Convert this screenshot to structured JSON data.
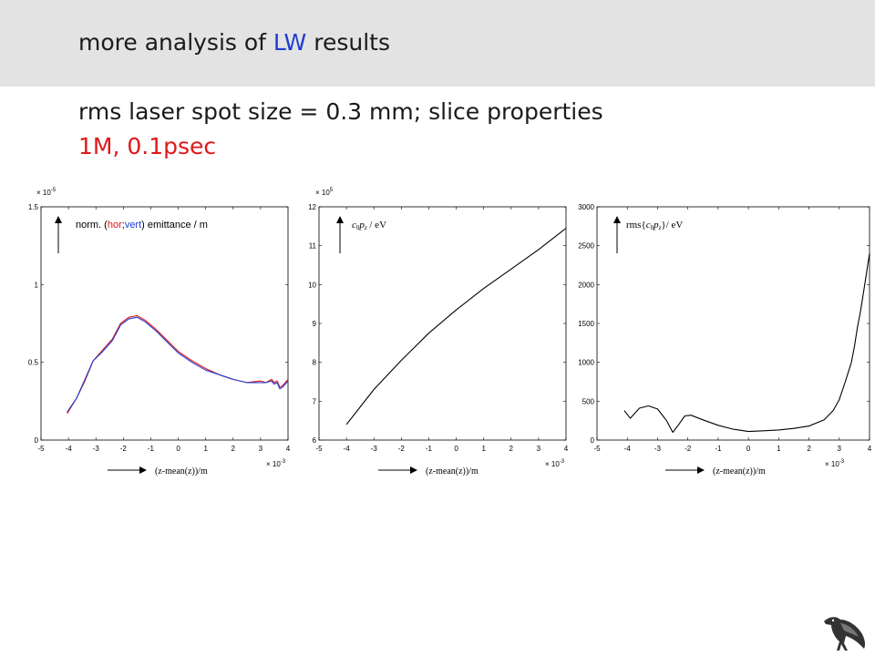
{
  "slide": {
    "title_prefix": "more analysis of ",
    "title_highlight": "LW",
    "title_suffix": " results",
    "subtitle": "rms laser spot size = 0.3 mm; slice properties",
    "subtitle2": "1M, 0.1psec"
  },
  "colors": {
    "header_band": "#e3e3e3",
    "highlight": "#1f3bd6",
    "accent_red": "#e01818",
    "hor": "#e01818",
    "vert": "#1f3bd6"
  },
  "chart_data": [
    {
      "type": "line",
      "ylabel_prefix": "norm. (",
      "ylabel_hor": "hor",
      "ylabel_sep": ";",
      "ylabel_vert": "vert",
      "ylabel_suffix": ") emittance / m",
      "xlabel": "(z-mean(z))/m",
      "x_exponent_label": "× 10",
      "x_exponent": "-3",
      "y_exponent_label": "× 10",
      "y_exponent": "-5",
      "xlim": [
        -5,
        4
      ],
      "ylim": [
        0,
        1.5
      ],
      "xticks": [
        "-5",
        "-4",
        "-3",
        "-2",
        "-1",
        "0",
        "1",
        "2",
        "3",
        "4"
      ],
      "yticks": [
        "0",
        "0.5",
        "1",
        "1.5"
      ],
      "series": [
        {
          "name": "hor",
          "color": "#e01818",
          "x": [
            -4.05,
            -3.7,
            -3.4,
            -3.1,
            -2.8,
            -2.4,
            -2.1,
            -1.8,
            -1.5,
            -1.2,
            -0.8,
            -0.4,
            0.0,
            0.5,
            1.0,
            1.5,
            2.0,
            2.5,
            3.0,
            3.2,
            3.4,
            3.5,
            3.6,
            3.7,
            3.8,
            3.9,
            4.0
          ],
          "values": [
            0.17,
            0.27,
            0.38,
            0.51,
            0.57,
            0.65,
            0.75,
            0.79,
            0.8,
            0.77,
            0.71,
            0.64,
            0.57,
            0.51,
            0.46,
            0.42,
            0.39,
            0.37,
            0.38,
            0.37,
            0.39,
            0.37,
            0.38,
            0.34,
            0.35,
            0.37,
            0.39
          ]
        },
        {
          "name": "vert",
          "color": "#1f3bd6",
          "x": [
            -4.05,
            -3.7,
            -3.4,
            -3.1,
            -2.8,
            -2.4,
            -2.1,
            -1.8,
            -1.5,
            -1.2,
            -0.8,
            -0.4,
            0.0,
            0.5,
            1.0,
            1.5,
            2.0,
            2.5,
            3.0,
            3.2,
            3.4,
            3.5,
            3.6,
            3.7,
            3.8,
            3.9,
            4.0
          ],
          "values": [
            0.18,
            0.27,
            0.39,
            0.51,
            0.56,
            0.64,
            0.74,
            0.78,
            0.79,
            0.76,
            0.7,
            0.63,
            0.56,
            0.5,
            0.45,
            0.42,
            0.39,
            0.37,
            0.37,
            0.37,
            0.38,
            0.36,
            0.37,
            0.33,
            0.34,
            0.36,
            0.38
          ]
        }
      ]
    },
    {
      "type": "line",
      "ylabel_c": "c",
      "ylabel_0": "0",
      "ylabel_p": "p",
      "ylabel_z": "z",
      "ylabel_unit": " / eV",
      "xlabel": "(z-mean(z))/m",
      "x_exponent_label": "× 10",
      "x_exponent": "-3",
      "y_exponent_label": "× 10",
      "y_exponent": "5",
      "xlim": [
        -5,
        4
      ],
      "ylim": [
        6,
        12
      ],
      "xticks": [
        "-5",
        "-4",
        "-3",
        "-2",
        "-1",
        "0",
        "1",
        "2",
        "3",
        "4"
      ],
      "yticks": [
        "6",
        "7",
        "8",
        "9",
        "10",
        "11",
        "12"
      ],
      "series": [
        {
          "color": "#000000",
          "x": [
            -4.0,
            -3.0,
            -2.0,
            -1.0,
            0.0,
            1.0,
            2.0,
            3.0,
            4.0
          ],
          "values": [
            6.4,
            7.3,
            8.05,
            8.75,
            9.35,
            9.9,
            10.4,
            10.9,
            11.45
          ]
        }
      ]
    },
    {
      "type": "line",
      "ylabel_rms": "rms{",
      "ylabel_c": "c",
      "ylabel_0": "0",
      "ylabel_p": "p",
      "ylabel_z": "z",
      "ylabel_unit": "}/ eV",
      "xlabel": "(z-mean(z))/m",
      "x_exponent_label": "× 10",
      "x_exponent": "-3",
      "xlim": [
        -5,
        4
      ],
      "ylim": [
        0,
        3000
      ],
      "xticks": [
        "-5",
        "-4",
        "-3",
        "-2",
        "-1",
        "0",
        "1",
        "2",
        "3",
        "4"
      ],
      "yticks": [
        "0",
        "500",
        "1000",
        "1500",
        "2000",
        "2500",
        "3000"
      ],
      "series": [
        {
          "color": "#000000",
          "x": [
            -4.1,
            -3.9,
            -3.6,
            -3.3,
            -3.0,
            -2.7,
            -2.5,
            -2.3,
            -2.1,
            -1.9,
            -1.5,
            -1.0,
            -0.5,
            0.0,
            0.5,
            1.0,
            1.5,
            2.0,
            2.5,
            2.8,
            3.0,
            3.2,
            3.4,
            3.5,
            3.6,
            3.7,
            3.8,
            3.9,
            4.0
          ],
          "values": [
            380,
            280,
            410,
            440,
            400,
            250,
            100,
            200,
            310,
            320,
            260,
            190,
            140,
            110,
            120,
            130,
            150,
            180,
            260,
            380,
            520,
            750,
            1000,
            1200,
            1450,
            1650,
            1900,
            2150,
            2400
          ]
        }
      ]
    }
  ]
}
